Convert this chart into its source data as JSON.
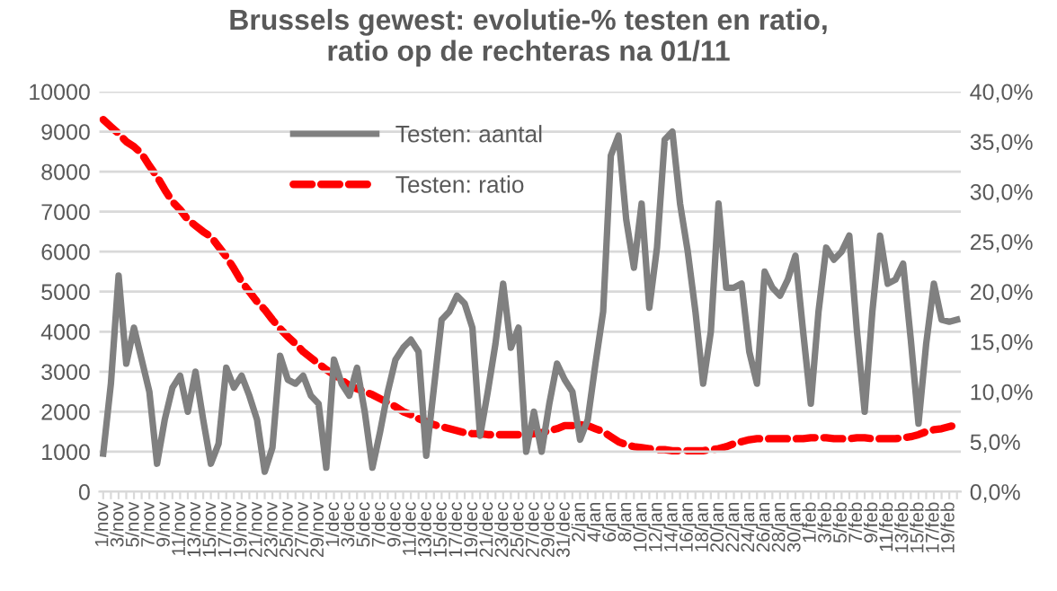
{
  "chart_data": {
    "type": "line",
    "title": "Brussels gewest: evolutie-% testen en ratio,\nratio op de rechteras na 01/11",
    "categories": [
      "1/nov",
      null,
      "3/nov",
      null,
      "5/nov",
      null,
      "7/nov",
      null,
      "9/nov",
      null,
      "11/nov",
      null,
      "13/nov",
      null,
      "15/nov",
      null,
      "17/nov",
      null,
      "19/nov",
      null,
      "21/nov",
      null,
      "23/nov",
      null,
      "25/nov",
      null,
      "27/nov",
      null,
      "29/nov",
      null,
      "1/dec",
      null,
      "3/dec",
      null,
      "5/dec",
      null,
      "7/dec",
      null,
      "9/dec",
      null,
      "11/dec",
      null,
      "13/dec",
      null,
      "15/dec",
      null,
      "17/dec",
      null,
      "19/dec",
      null,
      "21/dec",
      null,
      "23/dec",
      null,
      "25/dec",
      null,
      "27/dec",
      null,
      "29/dec",
      null,
      "31/dec",
      null,
      "2/jan",
      null,
      "4/jan",
      null,
      "6/jan",
      null,
      "8/jan",
      null,
      "10/jan",
      null,
      "12/jan",
      null,
      "14/jan",
      null,
      "16/jan",
      null,
      "18/jan",
      null,
      "20/jan",
      null,
      "22/jan",
      null,
      "24/jan",
      null,
      "26/jan",
      null,
      "28/jan",
      null,
      "30/jan",
      null,
      "1/feb",
      null,
      "3/feb",
      null,
      "5/feb",
      null,
      "7/feb",
      null,
      "9/feb",
      null,
      "11/feb",
      null,
      "13/feb",
      null,
      "15/feb",
      null,
      "17/feb",
      null,
      "19/feb",
      null
    ],
    "series": [
      {
        "name": "Testen: aantal",
        "color": "#808080",
        "line_style": "solid",
        "values": [
          950,
          2700,
          5400,
          3200,
          4100,
          3300,
          2500,
          700,
          1800,
          2600,
          2900,
          2000,
          3000,
          1800,
          700,
          1200,
          3100,
          2600,
          2900,
          2400,
          1800,
          500,
          1100,
          3400,
          2800,
          2700,
          2900,
          2400,
          2200,
          600,
          3300,
          2700,
          2400,
          3100,
          2000,
          600,
          1500,
          2500,
          3300,
          3600,
          3800,
          3500,
          900,
          2600,
          4300,
          4500,
          4900,
          4700,
          4100,
          1400,
          2500,
          3700,
          5200,
          3600,
          4100,
          1000,
          2000,
          1000,
          2200,
          3200,
          2800,
          2500,
          1300,
          1800,
          3200,
          4500,
          8400,
          8900,
          6800,
          5600,
          7200,
          4600,
          6100,
          8800,
          9000,
          7200,
          6000,
          4500,
          2700,
          4000,
          7200,
          5100,
          5100,
          5200,
          3500,
          2700,
          5500,
          5100,
          4900,
          5300,
          5900,
          4000,
          2200,
          4500,
          6100,
          5800,
          6000,
          6400,
          4000,
          2000,
          4500,
          6400,
          5200,
          5300,
          5700,
          3800,
          1700,
          3700,
          5200,
          4300,
          4250,
          4300
        ]
      },
      {
        "name": "Testen: ratio",
        "color": "#ff0000",
        "line_style": "dashed",
        "axis": "y2",
        "values": [
          37.2,
          36.5,
          35.8,
          35.0,
          34.5,
          33.8,
          32.6,
          31.5,
          30.2,
          29.0,
          28.2,
          27.2,
          26.6,
          26.0,
          25.5,
          24.5,
          23.5,
          22.3,
          21.0,
          20.0,
          19.0,
          18.2,
          17.2,
          16.3,
          15.5,
          14.8,
          14.0,
          13.4,
          12.8,
          12.2,
          11.7,
          11.2,
          10.6,
          10.3,
          10.0,
          9.7,
          9.3,
          8.9,
          8.5,
          8.0,
          7.7,
          7.3,
          7.0,
          6.7,
          6.5,
          6.3,
          6.1,
          5.9,
          5.8,
          5.8,
          5.7,
          5.7,
          5.7,
          5.7,
          5.7,
          5.7,
          5.8,
          5.9,
          6.1,
          6.3,
          6.6,
          6.6,
          6.7,
          6.6,
          6.3,
          6.0,
          5.5,
          5.0,
          4.7,
          4.5,
          4.4,
          4.3,
          4.2,
          4.2,
          4.1,
          4.1,
          4.1,
          4.1,
          4.1,
          4.2,
          4.3,
          4.5,
          4.8,
          5.0,
          5.2,
          5.3,
          5.3,
          5.3,
          5.3,
          5.3,
          5.3,
          5.3,
          5.4,
          5.4,
          5.4,
          5.3,
          5.3,
          5.3,
          5.4,
          5.4,
          5.3,
          5.3,
          5.3,
          5.3,
          5.4,
          5.5,
          5.7,
          6.0,
          6.2,
          6.3,
          6.5,
          6.7
        ]
      }
    ],
    "ylim": [
      0,
      10000
    ],
    "yticks": [
      0,
      1000,
      2000,
      3000,
      4000,
      5000,
      6000,
      7000,
      8000,
      9000,
      10000
    ],
    "y2lim": [
      0,
      40
    ],
    "y2ticks": [
      {
        "value": 0,
        "label": "0,0%"
      },
      {
        "value": 5,
        "label": "5,0%"
      },
      {
        "value": 10,
        "label": "10,0%"
      },
      {
        "value": 15,
        "label": "15,0%"
      },
      {
        "value": 20,
        "label": "20,0%"
      },
      {
        "value": 25,
        "label": "25,0%"
      },
      {
        "value": 30,
        "label": "30,0%"
      },
      {
        "value": 35,
        "label": "35,0%"
      },
      {
        "value": 40,
        "label": "40,0%"
      }
    ],
    "grid": "y",
    "legend": "top",
    "marker": "none"
  }
}
